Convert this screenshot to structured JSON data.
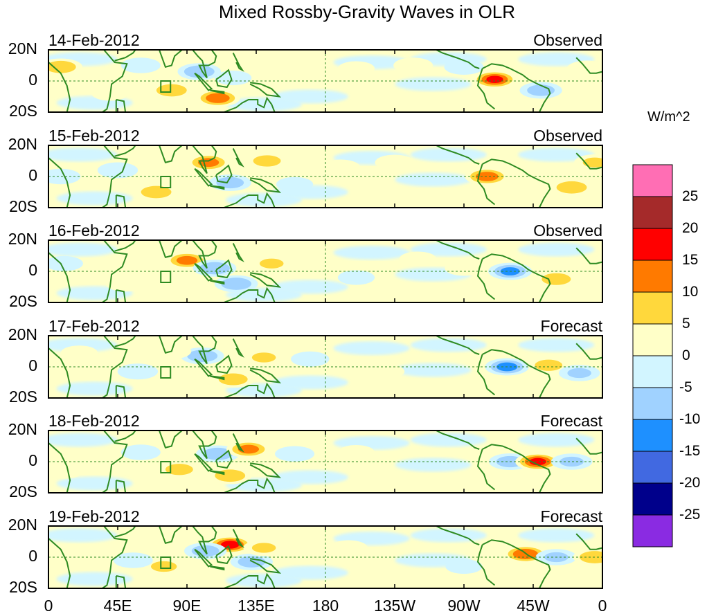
{
  "title": "Mixed Rossby-Gravity Waves in OLR",
  "units_label": "W/m^2",
  "lat_labels": [
    "20N",
    "0",
    "20S"
  ],
  "lon_labels": [
    "0",
    "45E",
    "90E",
    "135E",
    "180",
    "135W",
    "90W",
    "45W",
    "0"
  ],
  "panels": [
    {
      "date": "14-Feb-2012",
      "status": "Observed"
    },
    {
      "date": "15-Feb-2012",
      "status": "Observed"
    },
    {
      "date": "16-Feb-2012",
      "status": "Observed"
    },
    {
      "date": "17-Feb-2012",
      "status": "Forecast"
    },
    {
      "date": "18-Feb-2012",
      "status": "Forecast"
    },
    {
      "date": "19-Feb-2012",
      "status": "Forecast"
    }
  ],
  "colorbar": {
    "tick_labels": [
      "25",
      "20",
      "15",
      "10",
      "5",
      "0",
      "-5",
      "-10",
      "-15",
      "-20",
      "-25"
    ],
    "colors": [
      "#ff6eb4",
      "#a52a2a",
      "#ff0000",
      "#ff7a00",
      "#ffd83c",
      "#ffffc8",
      "#d2f5ff",
      "#a0d2ff",
      "#1e90ff",
      "#4169e1",
      "#00008b",
      "#8a2be2"
    ]
  },
  "colors": {
    "coast": "#2e8b22",
    "equator": "#2e8b22"
  },
  "anomalies": [
    [
      {
        "lon": 8,
        "lat": 9,
        "v": 12
      },
      {
        "lon": 60,
        "lat": 10,
        "v": -6
      },
      {
        "lon": 98,
        "lat": 6,
        "v": -12
      },
      {
        "lon": 80,
        "lat": -6,
        "v": 12
      },
      {
        "lon": 110,
        "lat": -11,
        "v": 16
      },
      {
        "lon": 150,
        "lat": 7,
        "v": 6
      },
      {
        "lon": 200,
        "lat": 8,
        "v": 4
      },
      {
        "lon": 237,
        "lat": 10,
        "v": 6
      },
      {
        "lon": 290,
        "lat": 1,
        "v": 18
      },
      {
        "lon": 320,
        "lat": -6,
        "v": -10
      },
      {
        "lon": 350,
        "lat": 8,
        "v": 7
      },
      {
        "lon": 120,
        "lat": 2,
        "v": -4
      },
      {
        "lon": 270,
        "lat": 9,
        "v": -6
      },
      {
        "lon": 40,
        "lat": -8,
        "v": 4
      }
    ],
    [
      {
        "lon": 45,
        "lat": 4,
        "v": -7
      },
      {
        "lon": 70,
        "lat": -10,
        "v": 12
      },
      {
        "lon": 104,
        "lat": 9,
        "v": 14
      },
      {
        "lon": 118,
        "lat": -4,
        "v": -10
      },
      {
        "lon": 142,
        "lat": 10,
        "v": 10
      },
      {
        "lon": 190,
        "lat": 6,
        "v": 5
      },
      {
        "lon": 225,
        "lat": 9,
        "v": 6
      },
      {
        "lon": 285,
        "lat": 0,
        "v": 15
      },
      {
        "lon": 340,
        "lat": -7,
        "v": 12
      },
      {
        "lon": 355,
        "lat": 9,
        "v": 8
      },
      {
        "lon": 8,
        "lat": 0,
        "v": -6
      },
      {
        "lon": 160,
        "lat": -5,
        "v": -4
      }
    ],
    [
      {
        "lon": 90,
        "lat": 7,
        "v": 14
      },
      {
        "lon": 108,
        "lat": 2,
        "v": -12
      },
      {
        "lon": 122,
        "lat": -8,
        "v": -12
      },
      {
        "lon": 145,
        "lat": 5,
        "v": 8
      },
      {
        "lon": 50,
        "lat": -8,
        "v": 6
      },
      {
        "lon": 300,
        "lat": 0,
        "v": -13
      },
      {
        "lon": 330,
        "lat": -5,
        "v": 11
      },
      {
        "lon": 270,
        "lat": 2,
        "v": 5
      },
      {
        "lon": 10,
        "lat": 5,
        "v": -5
      },
      {
        "lon": 200,
        "lat": -4,
        "v": -4
      },
      {
        "lon": 240,
        "lat": 8,
        "v": 4
      }
    ],
    [
      {
        "lon": 100,
        "lat": 7,
        "v": -12
      },
      {
        "lon": 120,
        "lat": -8,
        "v": 11
      },
      {
        "lon": 80,
        "lat": 10,
        "v": 6
      },
      {
        "lon": 58,
        "lat": -3,
        "v": -7
      },
      {
        "lon": 140,
        "lat": 6,
        "v": 8
      },
      {
        "lon": 170,
        "lat": 5,
        "v": -5
      },
      {
        "lon": 298,
        "lat": 0,
        "v": -14
      },
      {
        "lon": 325,
        "lat": 1,
        "v": 10
      },
      {
        "lon": 345,
        "lat": -4,
        "v": -8
      },
      {
        "lon": 20,
        "lat": 9,
        "v": 4
      },
      {
        "lon": 220,
        "lat": -3,
        "v": 3
      }
    ],
    [
      {
        "lon": 110,
        "lat": 5,
        "v": -12
      },
      {
        "lon": 130,
        "lat": 8,
        "v": 14
      },
      {
        "lon": 118,
        "lat": -9,
        "v": 12
      },
      {
        "lon": 85,
        "lat": -5,
        "v": 10
      },
      {
        "lon": 60,
        "lat": 6,
        "v": -6
      },
      {
        "lon": 160,
        "lat": 5,
        "v": -6
      },
      {
        "lon": 300,
        "lat": 0,
        "v": -10
      },
      {
        "lon": 318,
        "lat": 0,
        "v": 18
      },
      {
        "lon": 340,
        "lat": 0,
        "v": -8
      },
      {
        "lon": 200,
        "lat": 6,
        "v": 4
      },
      {
        "lon": 10,
        "lat": -6,
        "v": 6
      }
    ],
    [
      {
        "lon": 118,
        "lat": 8,
        "v": 19
      },
      {
        "lon": 102,
        "lat": 4,
        "v": -10
      },
      {
        "lon": 132,
        "lat": -3,
        "v": -10
      },
      {
        "lon": 140,
        "lat": 6,
        "v": 8
      },
      {
        "lon": 75,
        "lat": -6,
        "v": 9
      },
      {
        "lon": 55,
        "lat": -2,
        "v": -6
      },
      {
        "lon": 310,
        "lat": 2,
        "v": 17
      },
      {
        "lon": 330,
        "lat": 0,
        "v": -8
      },
      {
        "lon": 355,
        "lat": 0,
        "v": 12
      },
      {
        "lon": 195,
        "lat": 6,
        "v": 5
      },
      {
        "lon": 270,
        "lat": -6,
        "v": -4
      }
    ]
  ]
}
